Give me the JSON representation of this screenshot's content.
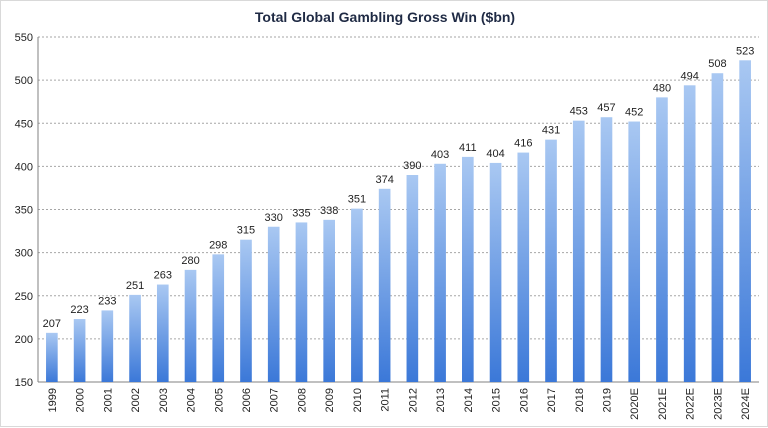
{
  "chart_data": {
    "type": "bar",
    "title": "Total Global Gambling Gross Win ($bn)",
    "xlabel": "",
    "ylabel": "",
    "categories": [
      "1999",
      "2000",
      "2001",
      "2002",
      "2003",
      "2004",
      "2005",
      "2006",
      "2007",
      "2008",
      "2009",
      "2010",
      "2011",
      "2012",
      "2013",
      "2014",
      "2015",
      "2016",
      "2017",
      "2018",
      "2019",
      "2020E",
      "2021E",
      "2022E",
      "2023E",
      "2024E"
    ],
    "values": [
      207,
      223,
      233,
      251,
      263,
      280,
      298,
      315,
      330,
      335,
      338,
      351,
      374,
      390,
      403,
      411,
      404,
      416,
      431,
      453,
      457,
      452,
      480,
      494,
      508,
      523
    ],
    "ylim": [
      150,
      550
    ],
    "yticks": [
      150,
      200,
      250,
      300,
      350,
      400,
      450,
      500,
      550
    ],
    "grid": true,
    "legend": "none",
    "colors": {
      "bar_top": "#a9c8f2",
      "bar_bottom": "#3b78d8",
      "grid": "#a6a6a6",
      "axis": "#808080"
    }
  }
}
